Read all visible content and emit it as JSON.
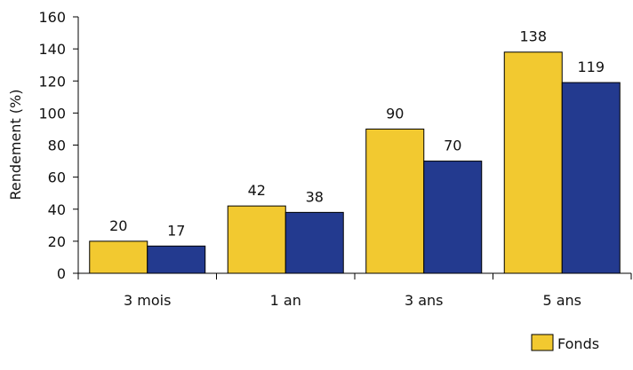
{
  "chart_data": {
    "type": "bar",
    "title": "",
    "xlabel": "",
    "ylabel": "Rendement (%)",
    "ylim": [
      0,
      160
    ],
    "yticks": [
      0,
      20,
      40,
      60,
      80,
      100,
      120,
      140,
      160
    ],
    "categories": [
      "3 mois",
      "1 an",
      "3 ans",
      "5 ans"
    ],
    "series": [
      {
        "name": "Fonds",
        "values": [
          20,
          42,
          90,
          138
        ],
        "color": "#F2C930"
      },
      {
        "values": [
          17,
          38,
          70,
          119
        ],
        "color": "#233A8F"
      }
    ],
    "grid": false,
    "legend_position": "bottom-right"
  }
}
